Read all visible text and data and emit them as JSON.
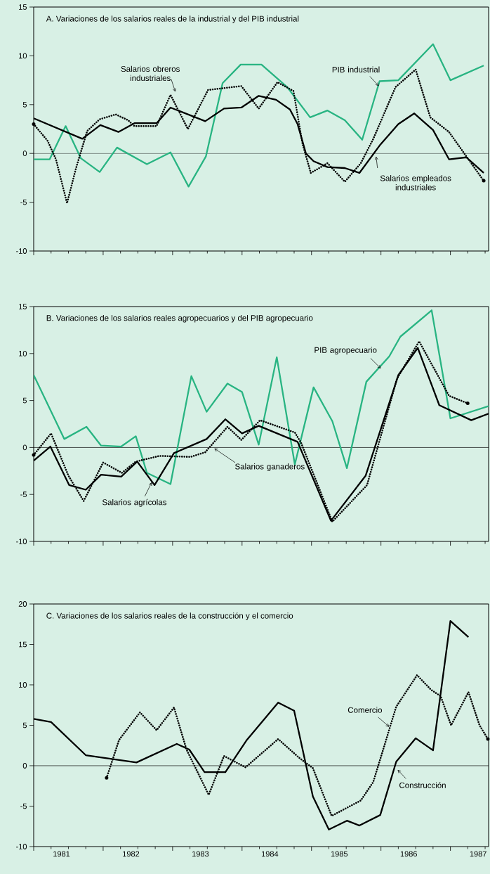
{
  "chart_data": [
    {
      "type": "line",
      "title": "A. Variaciones de los salarios reales de la industrial y del PIB industrial",
      "xlim": [
        1981,
        1987.55
      ],
      "ylim": [
        -10,
        15
      ],
      "yticks": [
        -10,
        -5,
        0,
        5,
        10,
        15
      ],
      "tick_labels": "y",
      "xticks": [
        {
          "value": 1981,
          "label": null
        },
        {
          "value": 1981.25,
          "label": null
        },
        {
          "value": 1981.5,
          "label": null
        },
        {
          "value": 1981.75,
          "label": null
        },
        {
          "value": 1982,
          "label": null
        },
        {
          "value": 1982.25,
          "label": null
        },
        {
          "value": 1982.5,
          "label": null
        },
        {
          "value": 1982.75,
          "label": null
        },
        {
          "value": 1983,
          "label": null
        },
        {
          "value": 1983.25,
          "label": null
        },
        {
          "value": 1983.5,
          "label": null
        },
        {
          "value": 1983.75,
          "label": null
        },
        {
          "value": 1984,
          "label": null
        },
        {
          "value": 1984.25,
          "label": null
        },
        {
          "value": 1984.5,
          "label": null
        },
        {
          "value": 1984.75,
          "label": null
        },
        {
          "value": 1985,
          "label": null
        },
        {
          "value": 1985.25,
          "label": null
        },
        {
          "value": 1985.5,
          "label": null
        },
        {
          "value": 1985.75,
          "label": null
        },
        {
          "value": 1986,
          "label": null
        },
        {
          "value": 1986.25,
          "label": null
        },
        {
          "value": 1986.5,
          "label": null
        },
        {
          "value": 1986.75,
          "label": null
        },
        {
          "value": 1987,
          "label": null
        },
        {
          "value": 1987.25,
          "label": null
        },
        {
          "value": 1987.5,
          "label": null
        }
      ],
      "ref_lines": [
        {
          "axis": "y",
          "value": 0,
          "color": "#000000"
        }
      ],
      "series": [
        {
          "name": "PIB industrial",
          "color": "#28b482",
          "line_style": "solid",
          "x": [
            1981.0,
            1981.23,
            1981.46,
            1981.68,
            1981.95,
            1982.2,
            1982.63,
            1982.97,
            1983.23,
            1983.48,
            1983.72,
            1983.98,
            1984.28,
            1984.65,
            1984.98,
            1985.23,
            1985.48,
            1985.73,
            1985.98,
            1986.25,
            1986.75,
            1987.0,
            1987.48
          ],
          "values": [
            -0.6,
            -0.6,
            2.8,
            -0.5,
            -1.9,
            0.6,
            -1.1,
            0.1,
            -3.4,
            -0.3,
            7.2,
            9.1,
            9.1,
            6.8,
            3.7,
            4.4,
            3.4,
            1.4,
            7.4,
            7.5,
            11.2,
            7.5,
            9.0
          ]
        },
        {
          "name": "Salarios obreros industriales",
          "color": "#000000",
          "line_style": "dotted",
          "x": [
            1981.0,
            1981.2,
            1981.32,
            1981.48,
            1981.61,
            1981.77,
            1981.95,
            1982.18,
            1982.36,
            1982.45,
            1982.77,
            1982.97,
            1983.22,
            1983.51,
            1983.99,
            1984.24,
            1984.51,
            1984.74,
            1984.87,
            1984.99,
            1985.23,
            1985.48,
            1985.71,
            1985.89,
            1986.21,
            1986.5,
            1986.71,
            1986.98,
            1987.23,
            1987.48
          ],
          "values": [
            3.0,
            1.3,
            -0.6,
            -5.1,
            -1.5,
            2.3,
            3.5,
            4.0,
            3.4,
            2.8,
            2.8,
            6.0,
            2.5,
            6.5,
            6.9,
            4.6,
            7.3,
            6.4,
            1.0,
            -2.0,
            -1.0,
            -2.9,
            -1.0,
            1.5,
            6.8,
            8.6,
            3.7,
            2.2,
            -0.3,
            -2.8
          ]
        },
        {
          "name": "Salarios empleados industriales",
          "color": "#000000",
          "line_style": "solid",
          "x": [
            1981.0,
            1981.7,
            1981.96,
            1982.22,
            1982.45,
            1982.77,
            1982.97,
            1983.47,
            1983.74,
            1983.99,
            1984.24,
            1984.49,
            1984.69,
            1984.8,
            1984.92,
            1985.03,
            1985.23,
            1985.48,
            1985.69,
            1985.98,
            1986.25,
            1986.48,
            1986.75,
            1986.98,
            1987.23,
            1987.48
          ],
          "values": [
            3.6,
            1.5,
            2.9,
            2.2,
            3.1,
            3.1,
            4.7,
            3.3,
            4.6,
            4.7,
            5.9,
            5.5,
            4.5,
            3.0,
            0.0,
            -0.8,
            -1.4,
            -1.5,
            -2.0,
            0.8,
            3.0,
            4.1,
            2.4,
            -0.6,
            -0.4,
            -2.0
          ]
        }
      ]
    },
    {
      "type": "line",
      "title": "B. Variaciones de los salarios reales agropecuarios y del PIB agropecuario",
      "xlim": [
        1981,
        1987.55
      ],
      "ylim": [
        -10,
        15
      ],
      "yticks": [
        -10,
        -5,
        0,
        5,
        10,
        15
      ],
      "tick_labels": "y",
      "xticks": [
        {
          "value": 1981,
          "label": null
        },
        {
          "value": 1981.25,
          "label": null
        },
        {
          "value": 1981.5,
          "label": null
        },
        {
          "value": 1981.75,
          "label": null
        },
        {
          "value": 1982,
          "label": null
        },
        {
          "value": 1982.25,
          "label": null
        },
        {
          "value": 1982.5,
          "label": null
        },
        {
          "value": 1982.75,
          "label": null
        },
        {
          "value": 1983,
          "label": null
        },
        {
          "value": 1983.25,
          "label": null
        },
        {
          "value": 1983.5,
          "label": null
        },
        {
          "value": 1983.75,
          "label": null
        },
        {
          "value": 1984,
          "label": null
        },
        {
          "value": 1984.25,
          "label": null
        },
        {
          "value": 1984.5,
          "label": null
        },
        {
          "value": 1984.75,
          "label": null
        },
        {
          "value": 1985,
          "label": null
        },
        {
          "value": 1985.25,
          "label": null
        },
        {
          "value": 1985.5,
          "label": null
        },
        {
          "value": 1985.75,
          "label": null
        },
        {
          "value": 1986,
          "label": null
        },
        {
          "value": 1986.25,
          "label": null
        },
        {
          "value": 1986.5,
          "label": null
        },
        {
          "value": 1986.75,
          "label": null
        },
        {
          "value": 1987,
          "label": null
        },
        {
          "value": 1987.25,
          "label": null
        },
        {
          "value": 1987.5,
          "label": null
        }
      ],
      "ref_lines": [
        {
          "axis": "y",
          "value": 0,
          "color": "#000000"
        }
      ],
      "series": [
        {
          "name": "PIB agropecuario",
          "color": "#28b482",
          "line_style": "solid",
          "x": [
            1981.0,
            1981.44,
            1981.76,
            1981.97,
            1982.26,
            1982.47,
            1982.63,
            1982.97,
            1983.27,
            1983.49,
            1983.79,
            1984.0,
            1984.24,
            1984.5,
            1984.76,
            1985.03,
            1985.3,
            1985.51,
            1985.79,
            1986.12,
            1986.28,
            1986.73,
            1987.0,
            1987.55
          ],
          "values": [
            7.7,
            0.9,
            2.2,
            0.2,
            0.1,
            1.2,
            -2.7,
            -3.9,
            7.6,
            3.8,
            6.8,
            5.9,
            0.3,
            9.6,
            -1.8,
            6.4,
            2.8,
            -2.2,
            7.0,
            9.7,
            11.8,
            14.6,
            3.1,
            4.4
          ]
        },
        {
          "name": "Salarios agrícolas",
          "color": "#000000",
          "line_style": "solid",
          "x": [
            1981.0,
            1981.24,
            1981.51,
            1981.75,
            1981.97,
            1982.26,
            1982.49,
            1982.74,
            1983.02,
            1983.49,
            1983.76,
            1984.0,
            1984.24,
            1984.8,
            1985.28,
            1985.78,
            1986.25,
            1986.53,
            1986.84,
            1987.3,
            1987.55
          ],
          "values": [
            -1.4,
            0.1,
            -4.0,
            -4.5,
            -2.9,
            -3.1,
            -1.5,
            -4.0,
            -0.6,
            0.9,
            3.0,
            1.5,
            2.3,
            0.6,
            -7.8,
            -3.0,
            7.7,
            10.6,
            4.5,
            2.9,
            3.6
          ]
        },
        {
          "name": "Salarios ganaderos",
          "color": "#000000",
          "line_style": "dotted",
          "x": [
            1981.0,
            1981.25,
            1981.5,
            1981.72,
            1982.0,
            1982.27,
            1982.47,
            1982.81,
            1983.26,
            1983.47,
            1983.79,
            1983.99,
            1984.26,
            1984.76,
            1984.85,
            1985.3,
            1985.8,
            1986.23,
            1986.55,
            1986.98,
            1987.25
          ],
          "values": [
            -0.8,
            1.5,
            -3.0,
            -5.7,
            -1.6,
            -2.7,
            -1.5,
            -0.9,
            -1.0,
            -0.5,
            2.2,
            0.8,
            2.9,
            1.6,
            0.5,
            -7.9,
            -4.0,
            7.3,
            11.3,
            5.5,
            4.7
          ]
        }
      ]
    },
    {
      "type": "line",
      "title": "C. Variaciones de los salarios reales de la construcción y el comercio",
      "xlim": [
        1981,
        1987.55
      ],
      "ylim": [
        -10,
        20
      ],
      "yticks": [
        -10,
        -5,
        0,
        5,
        10,
        15,
        20
      ],
      "xticks": [
        {
          "value": 1981,
          "label": null
        },
        {
          "value": 1981.25,
          "label": null
        },
        {
          "value": 1981.5,
          "label": null
        },
        {
          "value": 1981.75,
          "label": null
        },
        {
          "value": 1982,
          "label": null
        },
        {
          "value": 1982.25,
          "label": null
        },
        {
          "value": 1982.5,
          "label": null
        },
        {
          "value": 1982.75,
          "label": null
        },
        {
          "value": 1983,
          "label": null
        },
        {
          "value": 1983.25,
          "label": null
        },
        {
          "value": 1983.5,
          "label": null
        },
        {
          "value": 1983.75,
          "label": null
        },
        {
          "value": 1984,
          "label": null
        },
        {
          "value": 1984.25,
          "label": null
        },
        {
          "value": 1984.5,
          "label": null
        },
        {
          "value": 1984.75,
          "label": null
        },
        {
          "value": 1985,
          "label": null
        },
        {
          "value": 1985.25,
          "label": null
        },
        {
          "value": 1985.5,
          "label": null
        },
        {
          "value": 1985.75,
          "label": null
        },
        {
          "value": 1986,
          "label": null
        },
        {
          "value": 1986.25,
          "label": null
        },
        {
          "value": 1986.5,
          "label": null
        },
        {
          "value": 1986.75,
          "label": null
        },
        {
          "value": 1987,
          "label": null
        },
        {
          "value": 1987.25,
          "label": null
        },
        {
          "value": 1987.5,
          "label": null
        },
        {
          "value": 1981.4,
          "label": "1981"
        },
        {
          "value": 1982.4,
          "label": "1982"
        },
        {
          "value": 1983.4,
          "label": "1983"
        },
        {
          "value": 1984.4,
          "label": "1984"
        },
        {
          "value": 1985.4,
          "label": "1985"
        },
        {
          "value": 1986.4,
          "label": "1986"
        },
        {
          "value": 1987.4,
          "label": "1987"
        }
      ],
      "ref_lines": [
        {
          "axis": "y",
          "value": 0,
          "color": "#000000"
        }
      ],
      "series": [
        {
          "name": "Construcción",
          "color": "#000000",
          "line_style": "solid",
          "x": [
            1981.0,
            1981.25,
            1981.75,
            1982.48,
            1983.06,
            1983.24,
            1983.46,
            1983.76,
            1984.07,
            1984.52,
            1984.75,
            1985.02,
            1985.25,
            1985.51,
            1985.69,
            1985.99,
            1986.22,
            1986.5,
            1986.75,
            1987.0,
            1987.26
          ],
          "values": [
            5.8,
            5.4,
            1.3,
            0.4,
            2.7,
            2.0,
            -0.8,
            -0.8,
            3.2,
            7.8,
            6.8,
            -3.8,
            -7.9,
            -6.8,
            -7.4,
            -6.1,
            0.5,
            3.4,
            1.9,
            17.9,
            15.9
          ]
        },
        {
          "name": "Comercio",
          "color": "#000000",
          "line_style": "dotted",
          "x": [
            1982.05,
            1982.23,
            1982.53,
            1982.77,
            1983.02,
            1983.2,
            1983.52,
            1983.74,
            1984.05,
            1984.52,
            1984.82,
            1985.02,
            1985.29,
            1985.71,
            1985.89,
            1986.22,
            1986.52,
            1986.72,
            1986.86,
            1987.01,
            1987.26,
            1987.42,
            1987.54
          ],
          "values": [
            -1.5,
            3.2,
            6.6,
            4.4,
            7.2,
            2.0,
            -3.6,
            1.2,
            -0.2,
            3.3,
            1.0,
            -0.3,
            -6.2,
            -4.3,
            -2.0,
            7.3,
            11.2,
            9.4,
            8.6,
            5.0,
            9.1,
            5.0,
            3.3
          ]
        }
      ]
    }
  ]
}
